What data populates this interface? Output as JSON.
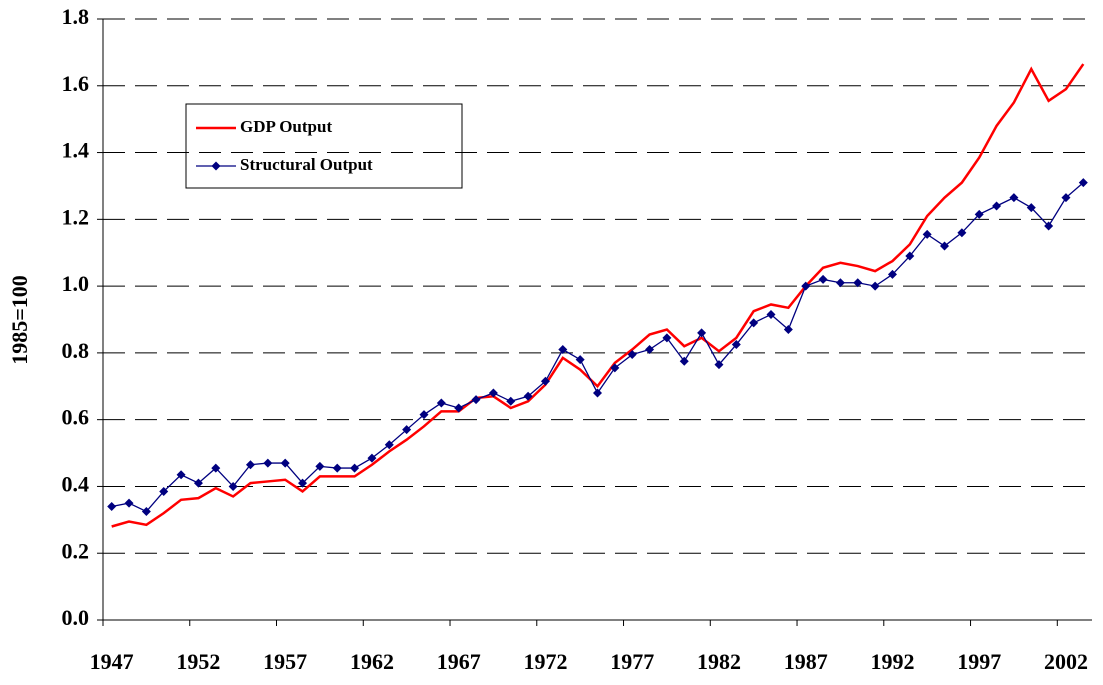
{
  "chart_data": {
    "type": "line",
    "y_label": "1985=100",
    "categories": [
      "1947",
      null,
      null,
      null,
      null,
      "1952",
      null,
      null,
      null,
      null,
      "1957",
      null,
      null,
      null,
      null,
      "1962",
      null,
      null,
      null,
      null,
      "1967",
      null,
      null,
      null,
      null,
      "1972",
      null,
      null,
      null,
      null,
      "1977",
      null,
      null,
      null,
      null,
      "1982",
      null,
      null,
      null,
      null,
      "1987",
      null,
      null,
      null,
      null,
      "1992",
      null,
      null,
      null,
      null,
      "1997",
      null,
      null,
      null,
      null,
      "2002",
      null
    ],
    "series": [
      {
        "name": "GDP Output",
        "color": "#ff0000",
        "marker": false,
        "values": [
          0.28,
          0.295,
          0.285,
          0.32,
          0.36,
          0.365,
          0.395,
          0.37,
          0.41,
          0.415,
          0.42,
          0.385,
          0.43,
          0.43,
          0.43,
          0.465,
          0.505,
          0.54,
          0.58,
          0.625,
          0.625,
          0.665,
          0.67,
          0.635,
          0.655,
          0.705,
          0.785,
          0.75,
          0.7,
          0.77,
          0.81,
          0.855,
          0.87,
          0.82,
          0.845,
          0.805,
          0.845,
          0.925,
          0.945,
          0.935,
          1.0,
          1.055,
          1.07,
          1.06,
          1.045,
          1.075,
          1.125,
          1.21,
          1.265,
          1.31,
          1.385,
          1.48,
          1.55,
          1.65,
          1.555,
          1.59,
          1.665
        ]
      },
      {
        "name": "Structural Output",
        "color": "#000080",
        "marker": true,
        "values": [
          0.34,
          0.35,
          0.325,
          0.385,
          0.435,
          0.41,
          0.455,
          0.4,
          0.465,
          0.47,
          0.47,
          0.41,
          0.46,
          0.455,
          0.455,
          0.485,
          0.525,
          0.57,
          0.615,
          0.65,
          0.635,
          0.66,
          0.68,
          0.655,
          0.67,
          0.715,
          0.81,
          0.78,
          0.68,
          0.755,
          0.795,
          0.81,
          0.845,
          0.775,
          0.86,
          0.765,
          0.825,
          0.89,
          0.915,
          0.87,
          1.0,
          1.02,
          1.01,
          1.01,
          1.0,
          1.035,
          1.09,
          1.155,
          1.12,
          1.16,
          1.215,
          1.24,
          1.265,
          1.235,
          1.18,
          1.265,
          1.31
        ]
      }
    ],
    "ylim": [
      0,
      1.8
    ],
    "yticks": [
      {
        "value": 0,
        "label": "0.0"
      },
      0.2,
      0.4,
      0.6,
      0.8,
      {
        "value": 1,
        "label": "1.0"
      },
      1.2,
      1.4,
      1.6,
      1.8
    ],
    "grid": true
  }
}
